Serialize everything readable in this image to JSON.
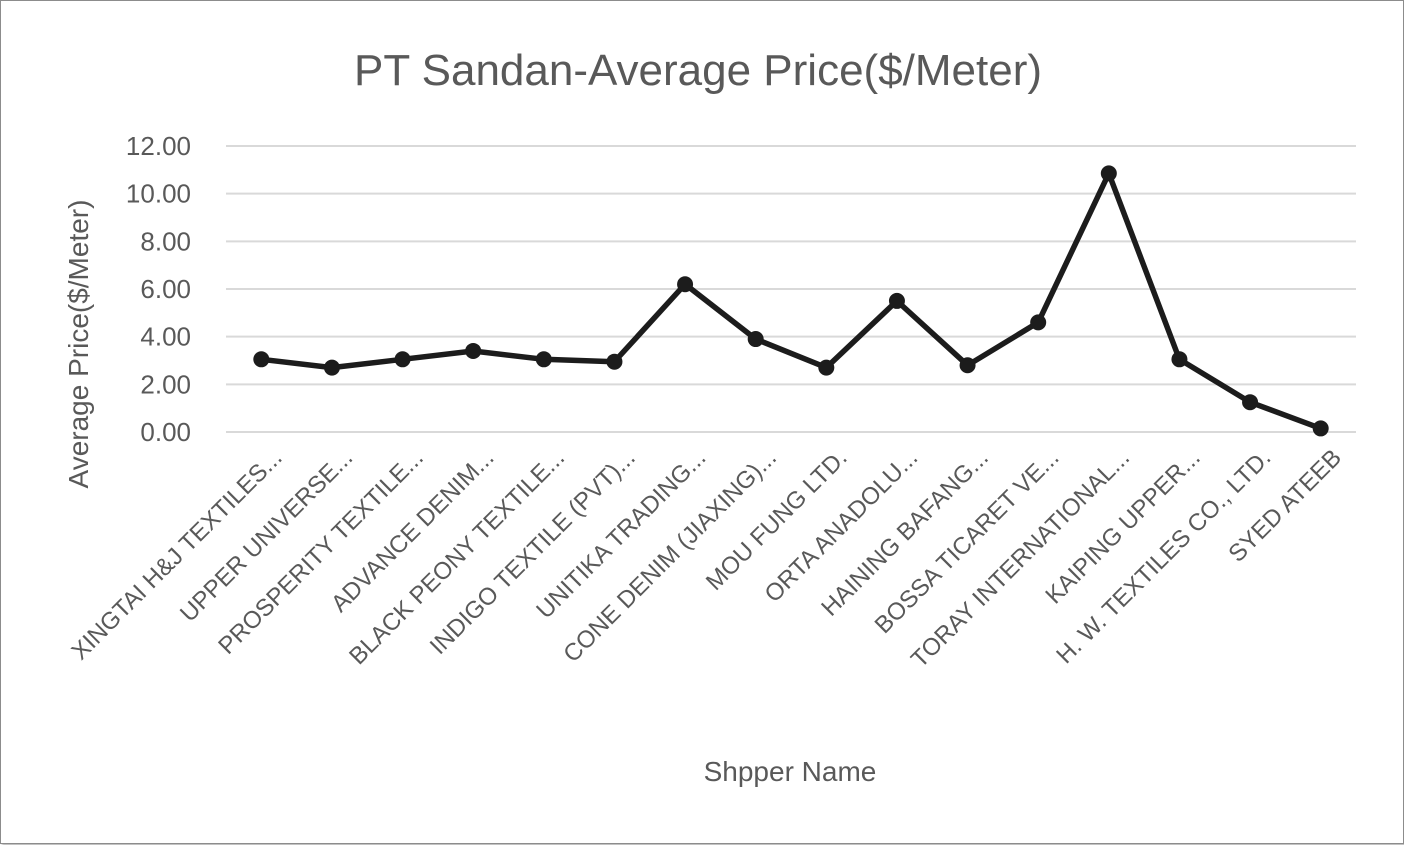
{
  "chart_data": {
    "type": "line",
    "title": "PT Sandan-Average Price($/Meter)",
    "xlabel": "Shpper Name",
    "ylabel": "Average Price($/Meter)",
    "ylim": [
      0,
      12
    ],
    "ytick_values": [
      0,
      2,
      4,
      6,
      8,
      10,
      12
    ],
    "ytick_labels": [
      "0.00",
      "2.00",
      "4.00",
      "6.00",
      "8.00",
      "10.00",
      "12.00"
    ],
    "grid": true,
    "legend": "none",
    "line_color": "#1c1c1c",
    "categories": [
      "XINGTAI H&J TEXTILES...",
      "UPPER UNIVERSE...",
      "PROSPERITY TEXTILE...",
      "ADVANCE DENIM...",
      "BLACK PEONY TEXTILE...",
      "INDIGO TEXTILE (PVT)...",
      "UNITIKA TRADING...",
      "CONE DENIM (JIAXING)...",
      "MOU FUNG LTD.",
      "ORTA ANADOLU...",
      "HAINING BAFANG...",
      "BOSSA TICARET VE...",
      "TORAY INTERNATIONAL...",
      "KAIPING UPPER...",
      "H. W. TEXTILES CO., LTD.",
      "SYED ATEEB"
    ],
    "series": [
      {
        "values": [
          3.05,
          2.7,
          3.05,
          3.4,
          3.05,
          2.95,
          6.2,
          3.9,
          2.7,
          5.5,
          2.8,
          4.6,
          10.85,
          3.05,
          1.25,
          0.15
        ]
      }
    ]
  }
}
